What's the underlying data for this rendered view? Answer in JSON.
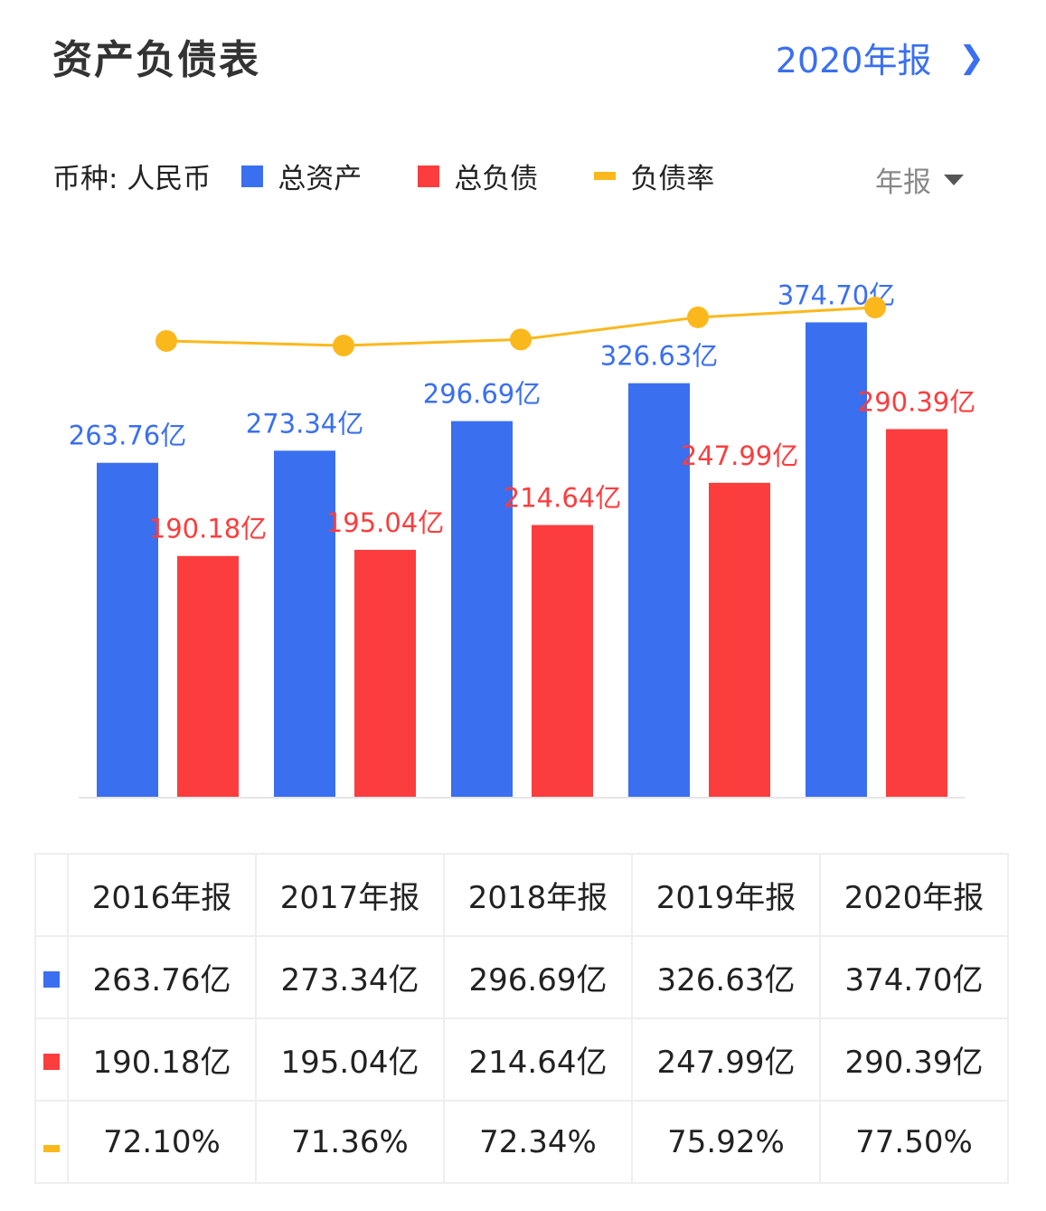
{
  "header": {
    "title": "资产负债表",
    "report_link": "2020年报"
  },
  "legend": {
    "currency": "币种: 人民币",
    "period": "年报"
  },
  "colors": {
    "assets": "#3a6ff0",
    "liabilities": "#fc3d3d",
    "ratio": "#fbb81c",
    "link": "#3a6ff0"
  },
  "chart_data": {
    "type": "bar",
    "categories": [
      "2016年报",
      "2017年报",
      "2018年报",
      "2019年报",
      "2020年报"
    ],
    "series": [
      {
        "name": "总资产",
        "type": "bar",
        "values": [
          263.76,
          273.34,
          296.69,
          326.63,
          374.7
        ],
        "labels": [
          "263.76亿",
          "273.34亿",
          "296.69亿",
          "326.63亿",
          "374.70亿"
        ]
      },
      {
        "name": "总负债",
        "type": "bar",
        "values": [
          190.18,
          195.04,
          214.64,
          247.99,
          290.39
        ],
        "labels": [
          "190.18亿",
          "195.04亿",
          "214.64亿",
          "247.99亿",
          "290.39亿"
        ]
      },
      {
        "name": "负债率",
        "type": "line",
        "values": [
          72.1,
          71.36,
          72.34,
          75.92,
          77.5
        ],
        "labels": [
          "72.10%",
          "71.36%",
          "72.34%",
          "75.92%",
          "77.50%"
        ]
      }
    ],
    "unit": "亿",
    "grid": false,
    "legend_position": "top-left"
  }
}
